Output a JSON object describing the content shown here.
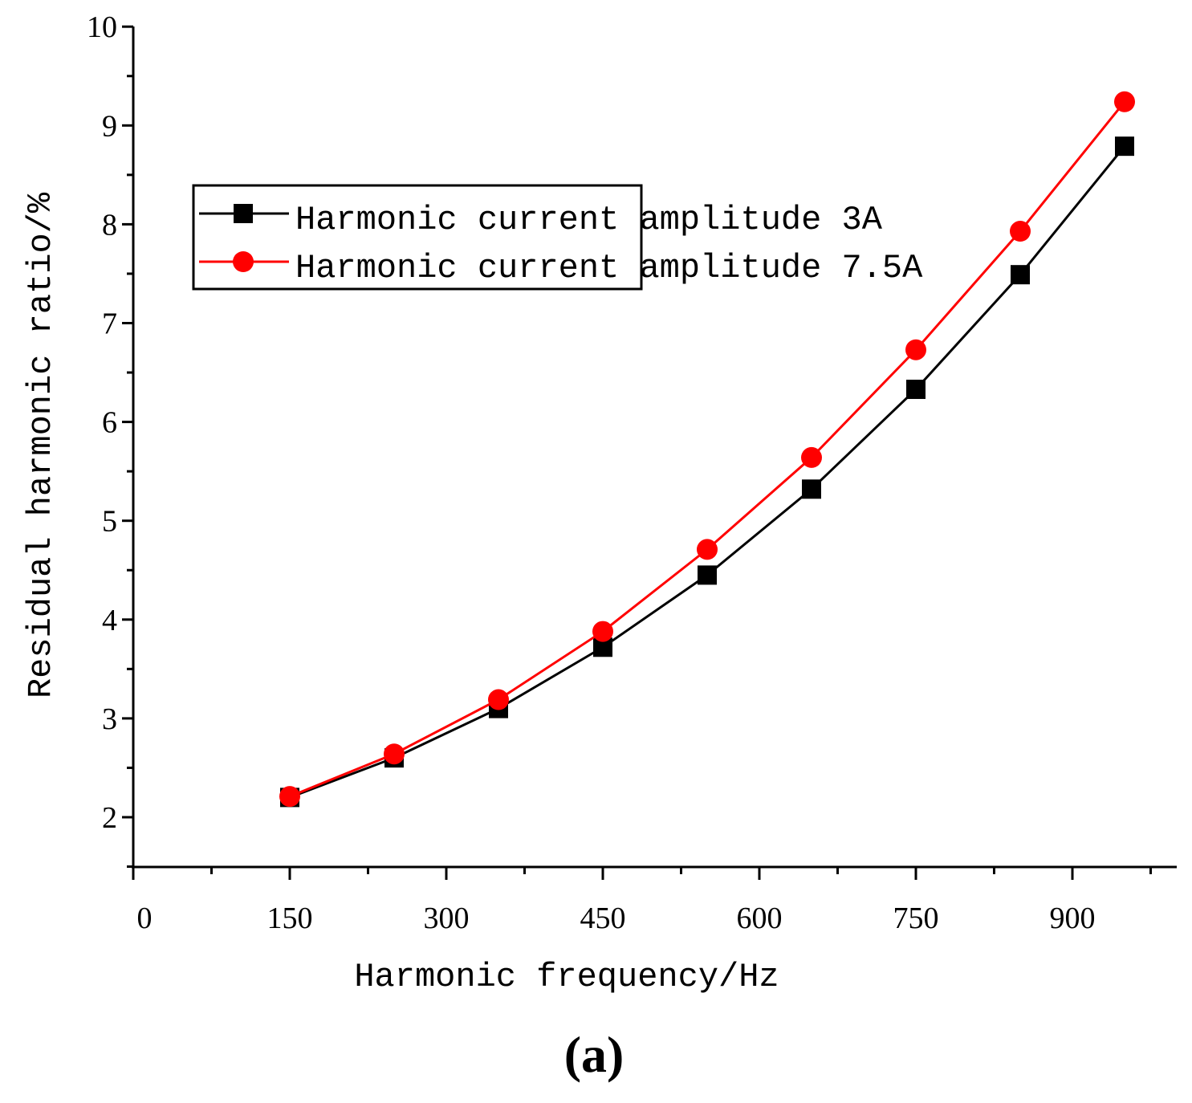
{
  "chart_data": {
    "type": "line",
    "title": "",
    "xlabel": "Harmonic frequency/Hz",
    "ylabel": "Residual harmonic ratio/%",
    "panel_label": "(a)",
    "xlim": [
      0,
      1000
    ],
    "ylim": [
      1.5,
      10
    ],
    "x_ticks": [
      0,
      150,
      300,
      450,
      600,
      750,
      900
    ],
    "x_tick_labels": [
      "0",
      "150",
      "300",
      "450",
      "600",
      "750",
      "900"
    ],
    "y_ticks": [
      2,
      3,
      4,
      5,
      6,
      7,
      8,
      9,
      10
    ],
    "y_tick_labels": [
      "2",
      "3",
      "4",
      "5",
      "6",
      "7",
      "8",
      "9",
      "10"
    ],
    "legend_position": "upper-left",
    "grid": false,
    "x": [
      150,
      250,
      350,
      450,
      550,
      650,
      750,
      850,
      950
    ],
    "series": [
      {
        "name": "Harmonic current amplitude 3A",
        "color": "#000000",
        "marker": "square",
        "values": [
          2.2,
          2.6,
          3.1,
          3.72,
          4.45,
          5.32,
          6.33,
          7.49,
          8.79
        ]
      },
      {
        "name": "Harmonic current amplitude 7.5A",
        "color": "#ff0000",
        "marker": "circle",
        "values": [
          2.21,
          2.64,
          3.19,
          3.88,
          4.71,
          5.64,
          6.73,
          7.93,
          9.24
        ]
      }
    ]
  }
}
